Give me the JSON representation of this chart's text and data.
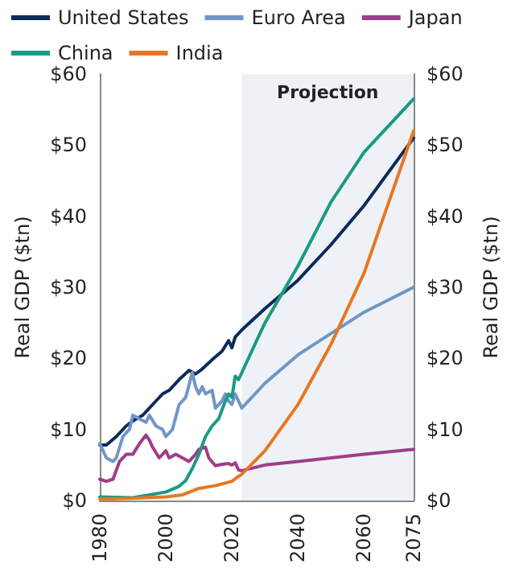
{
  "chart_data": {
    "type": "line",
    "xlabel": null,
    "ylabel": "Real GDP ($tn)",
    "y2label": "Real GDP ($tn)",
    "xlim": [
      1980,
      2075
    ],
    "xticks": [
      1980,
      2000,
      2020,
      2040,
      2060,
      2075
    ],
    "ylim": [
      0,
      60
    ],
    "yticks": [
      {
        "value": 0,
        "label": "$0"
      },
      {
        "value": 10,
        "label": "$10"
      },
      {
        "value": 20,
        "label": "$20"
      },
      {
        "value": 30,
        "label": "$30"
      },
      {
        "value": 40,
        "label": "$40"
      },
      {
        "value": 50,
        "label": "$50"
      },
      {
        "value": 60,
        "label": "$60"
      }
    ],
    "y2lim": [
      0,
      60
    ],
    "y2ticks": [
      {
        "value": 0,
        "label": "$0"
      },
      {
        "value": 10,
        "label": "$10"
      },
      {
        "value": 20,
        "label": "$20"
      },
      {
        "value": 30,
        "label": "$30"
      },
      {
        "value": 40,
        "label": "$40"
      },
      {
        "value": 50,
        "label": "$50"
      },
      {
        "value": 60,
        "label": "$60"
      }
    ],
    "grid": false,
    "legend": "top",
    "marker": "none",
    "line_style": "solid",
    "bands": [
      {
        "axis": "x",
        "from": 2023,
        "to": 2075,
        "label": "Projection",
        "color": "#eef2f6"
      }
    ],
    "series": [
      {
        "name": "United States",
        "color": "#0d2a5c",
        "x": [
          1980,
          1982,
          1985,
          1988,
          1990,
          1993,
          1996,
          1999,
          2001,
          2004,
          2007,
          2009,
          2011,
          2014,
          2017,
          2019,
          2020,
          2021,
          2023,
          2030,
          2040,
          2050,
          2060,
          2075
        ],
        "values": [
          7.8,
          7.8,
          9,
          10.5,
          11.2,
          12,
          13.5,
          15,
          15.5,
          17,
          18.3,
          17.8,
          18.5,
          19.8,
          21,
          22.5,
          21.5,
          23,
          24,
          27,
          31,
          36,
          41.5,
          51
        ]
      },
      {
        "name": "Euro Area",
        "color": "#7096c8",
        "x": [
          1980,
          1982,
          1984,
          1985,
          1987,
          1989,
          1990,
          1992,
          1994,
          1995,
          1997,
          1999,
          2000,
          2002,
          2004,
          2006,
          2008,
          2009,
          2010,
          2011,
          2012,
          2014,
          2015,
          2017,
          2018,
          2019,
          2020,
          2021,
          2022,
          2023,
          2030,
          2040,
          2050,
          2060,
          2075
        ],
        "values": [
          8,
          6,
          5.5,
          6,
          9,
          10,
          12,
          11.5,
          11,
          12,
          10.5,
          10,
          9,
          10,
          13.5,
          14.5,
          18,
          16,
          15,
          16,
          15,
          15.5,
          13,
          14,
          15,
          14,
          13.5,
          15,
          14,
          13,
          16.5,
          20.5,
          23.5,
          26.5,
          30
        ]
      },
      {
        "name": "Japan",
        "color": "#a03c8c",
        "x": [
          1980,
          1982,
          1984,
          1986,
          1988,
          1990,
          1992,
          1994,
          1995,
          1996,
          1998,
          2000,
          2001,
          2003,
          2005,
          2007,
          2009,
          2010,
          2012,
          2013,
          2015,
          2017,
          2019,
          2020,
          2021,
          2022,
          2023,
          2030,
          2040,
          2050,
          2060,
          2075
        ],
        "values": [
          3,
          2.7,
          3,
          5.5,
          6.5,
          6.5,
          8,
          9.2,
          8.5,
          7.5,
          6,
          7,
          6,
          6.5,
          6,
          5.5,
          6.5,
          7.2,
          7.5,
          6,
          4.9,
          5.1,
          5.2,
          5,
          5.3,
          4.3,
          4.2,
          5,
          5.5,
          6,
          6.5,
          7.2
        ]
      },
      {
        "name": "China",
        "color": "#1a9a85",
        "x": [
          1980,
          1990,
          1995,
          2000,
          2004,
          2006,
          2008,
          2010,
          2012,
          2014,
          2016,
          2018,
          2019,
          2020,
          2021,
          2022,
          2023,
          2030,
          2040,
          2050,
          2060,
          2075
        ],
        "values": [
          0.5,
          0.4,
          0.8,
          1.2,
          2,
          2.8,
          4.5,
          6.5,
          9,
          10.5,
          11.5,
          14,
          15,
          14.5,
          17.5,
          17,
          18,
          25,
          33,
          42,
          49,
          56.5
        ]
      },
      {
        "name": "India",
        "color": "#e87722",
        "x": [
          1980,
          1990,
          2000,
          2005,
          2010,
          2015,
          2020,
          2022,
          2023,
          2030,
          2040,
          2050,
          2060,
          2075
        ],
        "values": [
          0.2,
          0.3,
          0.5,
          0.8,
          1.7,
          2.1,
          2.7,
          3.4,
          3.7,
          7,
          13.5,
          22,
          32,
          52
        ]
      }
    ]
  }
}
